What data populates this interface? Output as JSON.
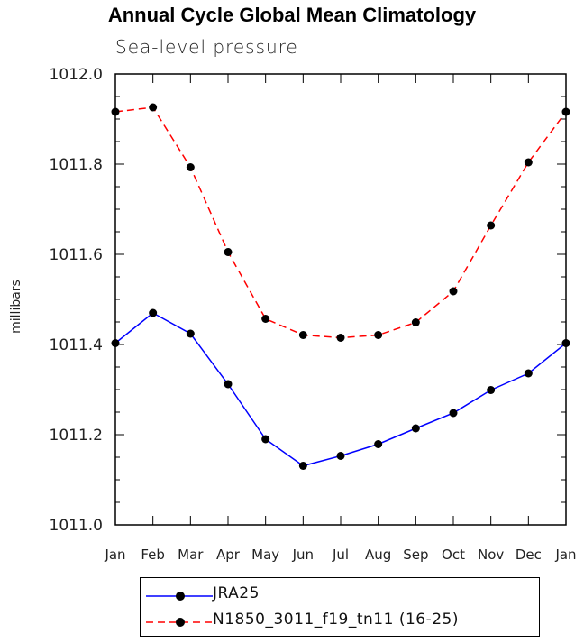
{
  "chart_data": {
    "type": "line",
    "title": "Annual Cycle Global Mean Climatology",
    "subtitle": "Sea-level pressure",
    "xlabel": "",
    "ylabel": "millibars",
    "categories": [
      "Jan",
      "Feb",
      "Mar",
      "Apr",
      "May",
      "Jun",
      "Jul",
      "Aug",
      "Sep",
      "Oct",
      "Nov",
      "Dec",
      "Jan"
    ],
    "ylim": [
      1011.0,
      1012.0
    ],
    "yticks": [
      "1011.0",
      "1011.2",
      "1011.4",
      "1011.6",
      "1011.8",
      "1012.0"
    ],
    "yticks_values": [
      1011.0,
      1011.2,
      1011.4,
      1011.6,
      1011.8,
      1012.0
    ],
    "grid": false,
    "legend_position": "bottom",
    "series": [
      {
        "name": "JRA25",
        "color": "#0000ff",
        "style": "solid",
        "values": [
          1011.403,
          1011.47,
          1011.424,
          1011.312,
          1011.19,
          1011.131,
          1011.153,
          1011.179,
          1011.214,
          1011.248,
          1011.299,
          1011.336,
          1011.403
        ]
      },
      {
        "name": "N1850_3011_f19_tn11 (16-25)",
        "color": "#ff0000",
        "style": "dashed",
        "values": [
          1011.916,
          1011.926,
          1011.793,
          1011.605,
          1011.457,
          1011.421,
          1011.415,
          1011.421,
          1011.449,
          1011.518,
          1011.664,
          1011.804,
          1011.916
        ]
      }
    ]
  }
}
